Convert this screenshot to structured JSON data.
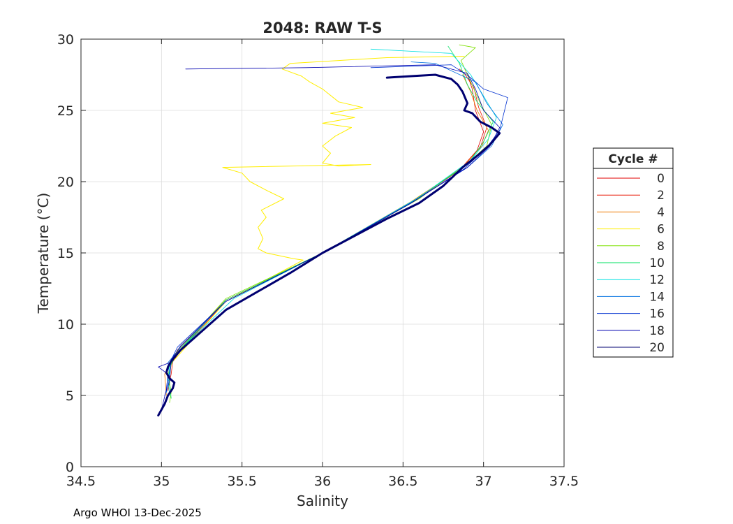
{
  "chart_data": {
    "type": "line",
    "title": "2048: RAW T-S",
    "xlabel": "Salinity",
    "ylabel": "Temperature (°C)",
    "xlim": [
      34.5,
      37.5
    ],
    "ylim": [
      0,
      30
    ],
    "xticks": [
      "34.5",
      "35",
      "35.5",
      "36",
      "36.5",
      "37",
      "37.5"
    ],
    "yticks": [
      "0",
      "5",
      "10",
      "15",
      "20",
      "25",
      "30"
    ],
    "grid": true,
    "legend": {
      "title": "Cycle #",
      "placement": "right-outside"
    },
    "series": [
      {
        "name": "0",
        "color": "#e00000",
        "width": 0.8,
        "points": [
          [
            35.04,
            5.3
          ],
          [
            35.05,
            6.2
          ],
          [
            35.06,
            7.2
          ],
          [
            35.12,
            8.2
          ],
          [
            35.4,
            11.6
          ],
          [
            36.0,
            15.0
          ],
          [
            36.55,
            18.5
          ],
          [
            36.85,
            20.8
          ],
          [
            36.96,
            22.2
          ],
          [
            37.0,
            23.5
          ],
          [
            36.95,
            25.0
          ],
          [
            36.93,
            26.5
          ],
          [
            36.9,
            27.5
          ],
          [
            36.88,
            28.0
          ]
        ]
      },
      {
        "name": "2",
        "color": "#e81400",
        "width": 0.8,
        "points": [
          [
            35.04,
            5.4
          ],
          [
            35.06,
            6.5
          ],
          [
            35.07,
            7.4
          ],
          [
            35.11,
            8.3
          ],
          [
            35.4,
            11.7
          ],
          [
            36.0,
            15.0
          ],
          [
            36.56,
            18.6
          ],
          [
            36.86,
            20.9
          ],
          [
            36.98,
            22.4
          ],
          [
            37.02,
            23.8
          ],
          [
            36.97,
            25.2
          ],
          [
            36.94,
            26.6
          ],
          [
            36.88,
            27.6
          ],
          [
            36.85,
            27.9
          ]
        ]
      },
      {
        "name": "4",
        "color": "#ee7a00",
        "width": 0.8,
        "points": [
          [
            35.03,
            5.0
          ],
          [
            35.02,
            6.5
          ],
          [
            35.05,
            7.2
          ],
          [
            35.1,
            8.2
          ],
          [
            35.4,
            11.6
          ],
          [
            36.0,
            15.0
          ],
          [
            36.55,
            18.6
          ],
          [
            36.86,
            20.9
          ],
          [
            36.99,
            22.5
          ],
          [
            37.03,
            23.6
          ],
          [
            36.96,
            25.0
          ],
          [
            36.92,
            26.3
          ],
          [
            36.87,
            27.5
          ]
        ]
      },
      {
        "name": "6",
        "color": "#ffee00",
        "width": 1.0,
        "points": [
          [
            35.08,
            7.5
          ],
          [
            35.4,
            11.6
          ],
          [
            35.88,
            14.5
          ],
          [
            35.82,
            14.6
          ],
          [
            35.65,
            15.0
          ],
          [
            35.6,
            15.3
          ],
          [
            35.63,
            16.0
          ],
          [
            35.6,
            16.8
          ],
          [
            35.65,
            17.5
          ],
          [
            35.62,
            18.0
          ],
          [
            35.76,
            18.8
          ],
          [
            35.65,
            19.4
          ],
          [
            35.55,
            20.0
          ],
          [
            35.5,
            20.6
          ],
          [
            35.38,
            21.0
          ],
          [
            36.3,
            21.2
          ],
          [
            36.1,
            21.1
          ],
          [
            36.0,
            21.3
          ],
          [
            36.05,
            22.0
          ],
          [
            36.0,
            22.5
          ],
          [
            36.08,
            23.2
          ],
          [
            36.18,
            23.8
          ],
          [
            36.0,
            24.1
          ],
          [
            36.2,
            24.5
          ],
          [
            36.05,
            24.8
          ],
          [
            36.25,
            25.2
          ],
          [
            36.1,
            25.6
          ],
          [
            36.0,
            26.5
          ],
          [
            35.92,
            27.0
          ],
          [
            35.87,
            27.4
          ],
          [
            35.75,
            27.9
          ],
          [
            35.8,
            28.3
          ],
          [
            36.1,
            28.5
          ],
          [
            36.4,
            28.7
          ],
          [
            36.88,
            28.8
          ]
        ]
      },
      {
        "name": "8",
        "color": "#7ee000",
        "width": 0.8,
        "points": [
          [
            35.05,
            4.5
          ],
          [
            35.06,
            5.2
          ],
          [
            35.04,
            6.5
          ],
          [
            35.08,
            7.8
          ],
          [
            35.4,
            11.8
          ],
          [
            36.0,
            15.0
          ],
          [
            36.6,
            18.8
          ],
          [
            36.92,
            21.5
          ],
          [
            37.02,
            22.5
          ],
          [
            37.05,
            24.0
          ],
          [
            36.98,
            25.5
          ],
          [
            36.92,
            27.0
          ],
          [
            36.86,
            28.5
          ],
          [
            36.95,
            29.4
          ],
          [
            36.85,
            29.6
          ]
        ]
      },
      {
        "name": "10",
        "color": "#00e060",
        "width": 0.8,
        "points": [
          [
            35.06,
            4.8
          ],
          [
            35.05,
            5.8
          ],
          [
            35.05,
            7.0
          ],
          [
            35.1,
            8.0
          ],
          [
            35.4,
            11.7
          ],
          [
            36.0,
            15.0
          ],
          [
            36.57,
            18.7
          ],
          [
            36.9,
            21.2
          ],
          [
            37.0,
            22.8
          ],
          [
            37.06,
            24.2
          ],
          [
            36.96,
            25.6
          ],
          [
            36.9,
            26.8
          ],
          [
            36.85,
            28.3
          ],
          [
            36.78,
            29.5
          ]
        ]
      },
      {
        "name": "12",
        "color": "#00e0e0",
        "width": 0.8,
        "points": [
          [
            35.05,
            5.0
          ],
          [
            35.04,
            6.2
          ],
          [
            35.06,
            7.4
          ],
          [
            35.15,
            8.6
          ],
          [
            35.45,
            11.8
          ],
          [
            36.0,
            15.0
          ],
          [
            36.6,
            18.9
          ],
          [
            36.92,
            21.5
          ],
          [
            37.03,
            23.0
          ],
          [
            37.08,
            24.5
          ],
          [
            37.0,
            26.0
          ],
          [
            36.92,
            27.5
          ],
          [
            36.8,
            29.0
          ],
          [
            36.3,
            29.3
          ]
        ]
      },
      {
        "name": "14",
        "color": "#0070e0",
        "width": 0.8,
        "points": [
          [
            35.03,
            5.2
          ],
          [
            35.05,
            6.4
          ],
          [
            35.04,
            7.3
          ],
          [
            35.12,
            8.4
          ],
          [
            35.4,
            11.6
          ],
          [
            36.0,
            15.0
          ],
          [
            36.56,
            18.6
          ],
          [
            36.9,
            21.0
          ],
          [
            37.05,
            22.5
          ],
          [
            37.12,
            24.0
          ],
          [
            37.02,
            25.5
          ],
          [
            36.95,
            27.0
          ],
          [
            36.7,
            28.3
          ],
          [
            36.55,
            28.4
          ]
        ]
      },
      {
        "name": "16",
        "color": "#0030d0",
        "width": 0.8,
        "points": [
          [
            35.02,
            5.0
          ],
          [
            35.05,
            6.0
          ],
          [
            35.06,
            7.5
          ],
          [
            35.1,
            8.4
          ],
          [
            35.4,
            11.6
          ],
          [
            36.0,
            15.0
          ],
          [
            36.55,
            18.5
          ],
          [
            36.88,
            20.9
          ],
          [
            37.02,
            22.4
          ],
          [
            37.1,
            23.6
          ],
          [
            37.15,
            25.9
          ],
          [
            37.0,
            26.5
          ],
          [
            36.92,
            27.3
          ],
          [
            36.8,
            28.2
          ],
          [
            36.3,
            28.0
          ]
        ]
      },
      {
        "name": "18",
        "color": "#0000b0",
        "width": 0.8,
        "points": [
          [
            35.0,
            4.0
          ],
          [
            35.03,
            5.4
          ],
          [
            35.04,
            6.5
          ],
          [
            34.98,
            7.0
          ],
          [
            35.05,
            7.3
          ],
          [
            35.12,
            8.5
          ],
          [
            35.4,
            11.6
          ],
          [
            36.0,
            15.0
          ],
          [
            36.55,
            18.5
          ],
          [
            36.9,
            21.0
          ],
          [
            37.04,
            22.5
          ],
          [
            37.1,
            23.8
          ],
          [
            37.0,
            25.0
          ],
          [
            36.95,
            26.5
          ],
          [
            36.9,
            27.6
          ],
          [
            36.7,
            28.2
          ],
          [
            35.9,
            28.0
          ],
          [
            35.15,
            27.9
          ]
        ]
      },
      {
        "name": "20",
        "color": "#000070",
        "width": 3.0,
        "points": [
          [
            34.98,
            3.6
          ],
          [
            35.02,
            4.4
          ],
          [
            35.04,
            5.0
          ],
          [
            35.07,
            5.5
          ],
          [
            35.08,
            5.9
          ],
          [
            35.05,
            6.2
          ],
          [
            35.03,
            6.6
          ],
          [
            35.04,
            7.0
          ],
          [
            35.06,
            7.4
          ],
          [
            35.12,
            8.2
          ],
          [
            35.2,
            9.0
          ],
          [
            35.3,
            10.0
          ],
          [
            35.4,
            11.0
          ],
          [
            35.6,
            12.3
          ],
          [
            35.8,
            13.6
          ],
          [
            36.0,
            15.0
          ],
          [
            36.2,
            16.2
          ],
          [
            36.4,
            17.4
          ],
          [
            36.6,
            18.5
          ],
          [
            36.75,
            19.7
          ],
          [
            36.87,
            21.0
          ],
          [
            36.97,
            21.9
          ],
          [
            37.04,
            22.6
          ],
          [
            37.1,
            23.4
          ],
          [
            37.05,
            23.8
          ],
          [
            36.98,
            24.2
          ],
          [
            36.93,
            24.8
          ],
          [
            36.88,
            25.0
          ],
          [
            36.9,
            25.5
          ],
          [
            36.87,
            26.3
          ],
          [
            36.84,
            26.8
          ],
          [
            36.8,
            27.2
          ],
          [
            36.7,
            27.5
          ],
          [
            36.55,
            27.4
          ],
          [
            36.4,
            27.3
          ]
        ]
      }
    ]
  },
  "footer": {
    "note": "Argo WHOI 13-Dec-2025"
  }
}
